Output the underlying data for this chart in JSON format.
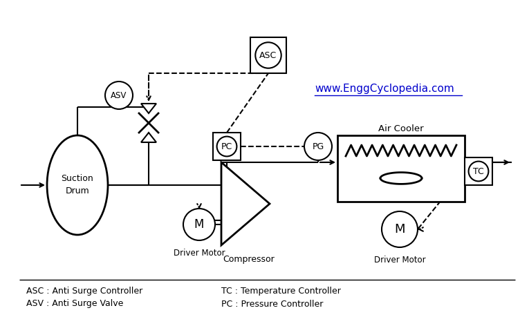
{
  "bg_color": "#ffffff",
  "line_color": "#000000",
  "blue_color": "#0000cc",
  "url_text": "www.EnggCyclopedia.com",
  "legend_lines": [
    "ASC : Anti Surge Controller",
    "ASV : Anti Surge Valve",
    "TC : Temperature Controller",
    "PC : Pressure Controller"
  ],
  "figsize": [
    7.65,
    4.72
  ],
  "dpi": 100
}
